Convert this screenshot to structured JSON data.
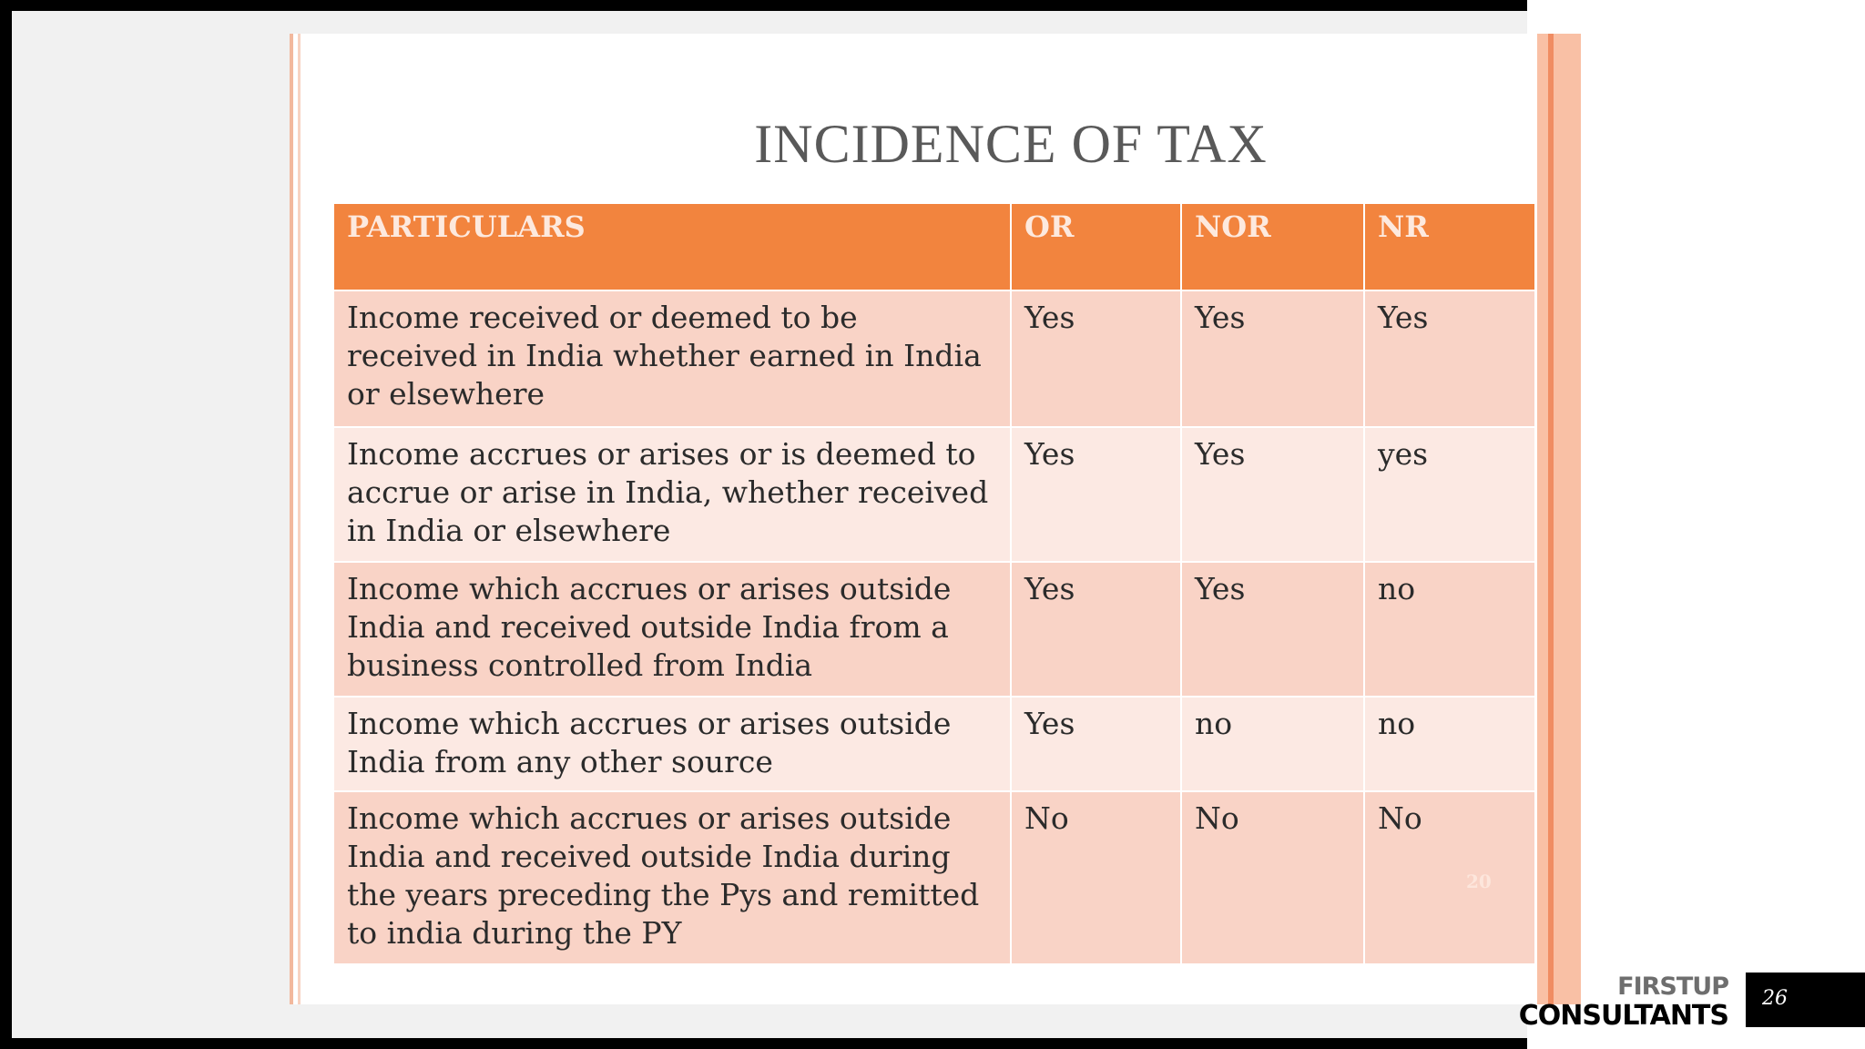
{
  "slide": {
    "title": "INCIDENCE OF TAX",
    "ghost_number": "20",
    "page_number": "26"
  },
  "table": {
    "headers": [
      "PARTICULARS",
      "OR",
      "NOR",
      "NR"
    ],
    "rows": [
      [
        "Income received or deemed to be received in India whether earned in India or elsewhere",
        "Yes",
        "Yes",
        "Yes"
      ],
      [
        "Income accrues or arises or is deemed to accrue or arise in India, whether received in India or elsewhere",
        "Yes",
        "Yes",
        "yes"
      ],
      [
        "Income which accrues or arises outside India and received outside India from a business controlled from India",
        "Yes",
        "Yes",
        "no"
      ],
      [
        "Income which accrues or arises outside India from any other source",
        "Yes",
        "no",
        "no"
      ],
      [
        "Income which accrues or arises outside India and received outside India during the years preceding the Pys and remitted to india during the PY",
        "No",
        "No",
        "No"
      ]
    ]
  },
  "brand": {
    "line1": "FIRSTUP",
    "line2": "CONSULTANTS"
  },
  "colors": {
    "header_bg": "#f2843e",
    "row_dark": "#f9d3c6",
    "row_light": "#fce9e3",
    "title": "#595959"
  }
}
